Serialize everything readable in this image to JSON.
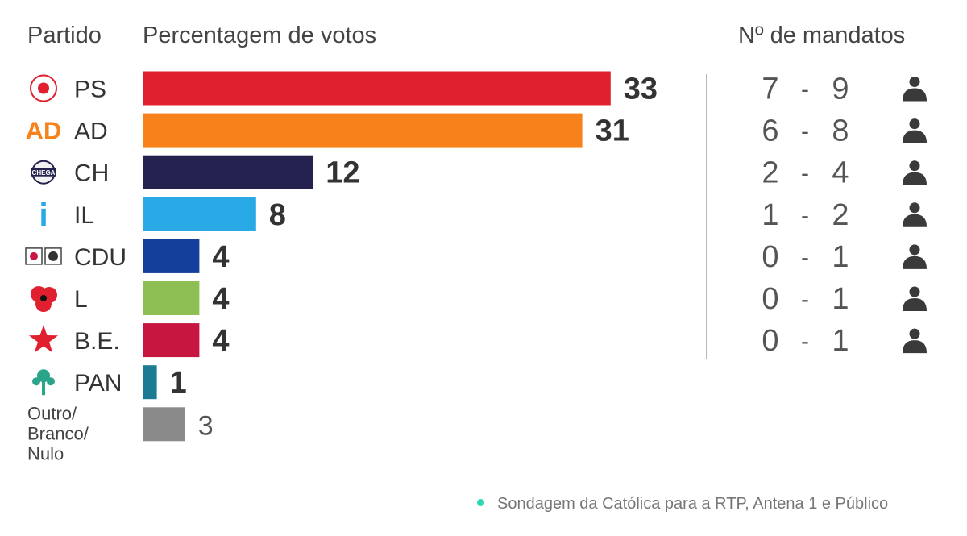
{
  "headers": {
    "party": "Partido",
    "votes": "Percentagem de votos",
    "seats": "Nº de mandatos"
  },
  "footer": {
    "source": "Sondagem da Católica para a RTP, Antena 1 e Público"
  },
  "logo_text": {
    "AD": "AD",
    "CH": "CHEGA",
    "IL": "i"
  },
  "chart_data": {
    "type": "bar",
    "orientation": "horizontal",
    "title": "",
    "xlabel": "Percentagem de votos",
    "ylabel": "Partido",
    "categories": [
      "PS",
      "AD",
      "CH",
      "IL",
      "CDU",
      "L",
      "B.E.",
      "PAN",
      "Outro/\nBranco/\nNulo"
    ],
    "values": [
      33,
      31,
      12,
      8,
      4,
      4,
      4,
      1,
      3
    ],
    "colors": [
      "#e0202e",
      "#f7821c",
      "#252250",
      "#29a9e6",
      "#143f9a",
      "#8ebf54",
      "#c7163f",
      "#1a7b93",
      "#8a8a8a"
    ],
    "seats": [
      "7 - 9",
      "6 - 8",
      "2 - 4",
      "1 - 2",
      "0 - 1",
      "0 - 1",
      "0 - 1",
      null,
      null
    ],
    "seats_header": "Nº de mandatos",
    "logos": [
      "ps-logo",
      "ad-logo",
      "chega-logo",
      "il-logo",
      "cdu-logo",
      "livre-poppy-logo",
      "be-star-logo",
      "pan-tree-logo",
      null
    ],
    "xlim": [
      0,
      33
    ],
    "grid": false,
    "legend": "none"
  }
}
